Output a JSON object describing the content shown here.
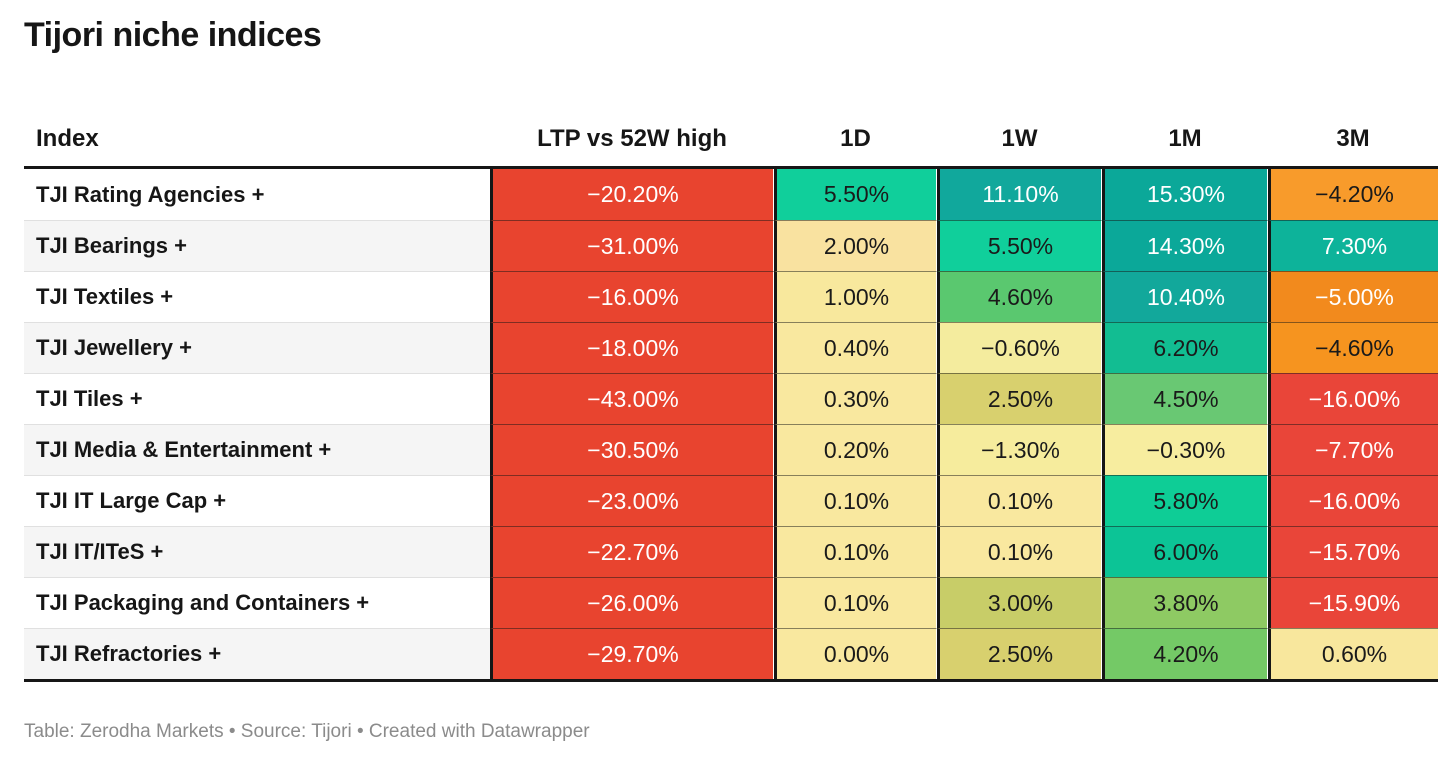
{
  "title": "Tijori niche indices",
  "footer": "Table: Zerodha Markets • Source: Tijori • Created with Datawrapper",
  "columns": [
    {
      "key": "index",
      "label": "Index"
    },
    {
      "key": "ltp",
      "label": "LTP vs 52W high"
    },
    {
      "key": "d1",
      "label": "1D"
    },
    {
      "key": "w1",
      "label": "1W"
    },
    {
      "key": "m1",
      "label": "1M"
    },
    {
      "key": "m3",
      "label": "3M"
    }
  ],
  "colors": {
    "red_ltp": "#e8442f",
    "red": "#e94539",
    "orange": "#f6941f",
    "pale_yellow": "#f9e89f",
    "olive": "#d8d06e",
    "green": "#69c873",
    "emerald": "#10cf9b",
    "teal": "#0ba899",
    "text_dark": "#1a1a1a",
    "text_light": "#ffffff",
    "border_dark": "#161616"
  },
  "rows": [
    {
      "index": "TJI Rating Agencies +",
      "cells": [
        {
          "text": "−20.20%",
          "bg": "#e8442f",
          "fg": "#ffffff"
        },
        {
          "text": "5.50%",
          "bg": "#10cf9b",
          "fg": "#1a1a1a"
        },
        {
          "text": "11.10%",
          "bg": "#11a89c",
          "fg": "#ffffff"
        },
        {
          "text": "15.30%",
          "bg": "#0ba899",
          "fg": "#ffffff"
        },
        {
          "text": "−4.20%",
          "bg": "#f89b2b",
          "fg": "#1a1a1a"
        }
      ]
    },
    {
      "index": "TJI Bearings +",
      "cells": [
        {
          "text": "−31.00%",
          "bg": "#e8442f",
          "fg": "#ffffff"
        },
        {
          "text": "2.00%",
          "bg": "#f9e2a0",
          "fg": "#1a1a1a"
        },
        {
          "text": "5.50%",
          "bg": "#10cf9b",
          "fg": "#1a1a1a"
        },
        {
          "text": "14.30%",
          "bg": "#0ba899",
          "fg": "#ffffff"
        },
        {
          "text": "7.30%",
          "bg": "#0db39a",
          "fg": "#ffffff"
        }
      ]
    },
    {
      "index": "TJI Textiles +",
      "cells": [
        {
          "text": "−16.00%",
          "bg": "#e8442f",
          "fg": "#ffffff"
        },
        {
          "text": "1.00%",
          "bg": "#f8e89d",
          "fg": "#1a1a1a"
        },
        {
          "text": "4.60%",
          "bg": "#5ac86f",
          "fg": "#1a1a1a"
        },
        {
          "text": "10.40%",
          "bg": "#12a89b",
          "fg": "#ffffff"
        },
        {
          "text": "−5.00%",
          "bg": "#f28a1d",
          "fg": "#ffffff"
        }
      ]
    },
    {
      "index": "TJI Jewellery +",
      "cells": [
        {
          "text": "−18.00%",
          "bg": "#e8442f",
          "fg": "#ffffff"
        },
        {
          "text": "0.40%",
          "bg": "#f9e89f",
          "fg": "#1a1a1a"
        },
        {
          "text": "−0.60%",
          "bg": "#f4ec9e",
          "fg": "#1a1a1a"
        },
        {
          "text": "6.20%",
          "bg": "#12bd92",
          "fg": "#1a1a1a"
        },
        {
          "text": "−4.60%",
          "bg": "#f6941f",
          "fg": "#1a1a1a"
        }
      ]
    },
    {
      "index": "TJI Tiles +",
      "cells": [
        {
          "text": "−43.00%",
          "bg": "#e8442f",
          "fg": "#ffffff"
        },
        {
          "text": "0.30%",
          "bg": "#f9e89f",
          "fg": "#1a1a1a"
        },
        {
          "text": "2.50%",
          "bg": "#d8d06e",
          "fg": "#1a1a1a"
        },
        {
          "text": "4.50%",
          "bg": "#69c873",
          "fg": "#1a1a1a"
        },
        {
          "text": "−16.00%",
          "bg": "#e94539",
          "fg": "#ffffff"
        }
      ]
    },
    {
      "index": "TJI Media & Entertainment +",
      "cells": [
        {
          "text": "−30.50%",
          "bg": "#e8442f",
          "fg": "#ffffff"
        },
        {
          "text": "0.20%",
          "bg": "#f9e89f",
          "fg": "#1a1a1a"
        },
        {
          "text": "−1.30%",
          "bg": "#f6ec9d",
          "fg": "#1a1a1a"
        },
        {
          "text": "−0.30%",
          "bg": "#f7ed9f",
          "fg": "#1a1a1a"
        },
        {
          "text": "−7.70%",
          "bg": "#e94539",
          "fg": "#ffffff"
        }
      ]
    },
    {
      "index": "TJI IT Large Cap +",
      "cells": [
        {
          "text": "−23.00%",
          "bg": "#e8442f",
          "fg": "#ffffff"
        },
        {
          "text": "0.10%",
          "bg": "#f9e89f",
          "fg": "#1a1a1a"
        },
        {
          "text": "0.10%",
          "bg": "#f9e89f",
          "fg": "#1a1a1a"
        },
        {
          "text": "5.80%",
          "bg": "#0ecd96",
          "fg": "#1a1a1a"
        },
        {
          "text": "−16.00%",
          "bg": "#e94539",
          "fg": "#ffffff"
        }
      ]
    },
    {
      "index": "TJI IT/ITeS +",
      "cells": [
        {
          "text": "−22.70%",
          "bg": "#e8442f",
          "fg": "#ffffff"
        },
        {
          "text": "0.10%",
          "bg": "#f9e89f",
          "fg": "#1a1a1a"
        },
        {
          "text": "0.10%",
          "bg": "#f9e89f",
          "fg": "#1a1a1a"
        },
        {
          "text": "6.00%",
          "bg": "#0cc496",
          "fg": "#1a1a1a"
        },
        {
          "text": "−15.70%",
          "bg": "#e94539",
          "fg": "#ffffff"
        }
      ]
    },
    {
      "index": "TJI Packaging and Containers +",
      "cells": [
        {
          "text": "−26.00%",
          "bg": "#e8442f",
          "fg": "#ffffff"
        },
        {
          "text": "0.10%",
          "bg": "#f9e89f",
          "fg": "#1a1a1a"
        },
        {
          "text": "3.00%",
          "bg": "#c8cd68",
          "fg": "#1a1a1a"
        },
        {
          "text": "3.80%",
          "bg": "#8eca63",
          "fg": "#1a1a1a"
        },
        {
          "text": "−15.90%",
          "bg": "#e94539",
          "fg": "#ffffff"
        }
      ]
    },
    {
      "index": "TJI Refractories +",
      "cells": [
        {
          "text": "−29.70%",
          "bg": "#e8442f",
          "fg": "#ffffff"
        },
        {
          "text": "0.00%",
          "bg": "#f9e89f",
          "fg": "#1a1a1a"
        },
        {
          "text": "2.50%",
          "bg": "#d8d06e",
          "fg": "#1a1a1a"
        },
        {
          "text": "4.20%",
          "bg": "#74c966",
          "fg": "#1a1a1a"
        },
        {
          "text": "0.60%",
          "bg": "#f8e79d",
          "fg": "#1a1a1a"
        }
      ]
    }
  ],
  "chart_data": {
    "type": "table",
    "title": "Tijori niche indices",
    "columns": [
      "Index",
      "LTP vs 52W high",
      "1D",
      "1W",
      "1M",
      "3M"
    ],
    "rows": [
      [
        "TJI Rating Agencies +",
        -20.2,
        5.5,
        11.1,
        15.3,
        -4.2
      ],
      [
        "TJI Bearings +",
        -31.0,
        2.0,
        5.5,
        14.3,
        7.3
      ],
      [
        "TJI Textiles +",
        -16.0,
        1.0,
        4.6,
        10.4,
        -5.0
      ],
      [
        "TJI Jewellery +",
        -18.0,
        0.4,
        -0.6,
        6.2,
        -4.6
      ],
      [
        "TJI Tiles +",
        -43.0,
        0.3,
        2.5,
        4.5,
        -16.0
      ],
      [
        "TJI Media & Entertainment +",
        -30.5,
        0.2,
        -1.3,
        -0.3,
        -7.7
      ],
      [
        "TJI IT Large Cap +",
        -23.0,
        0.1,
        0.1,
        5.8,
        -16.0
      ],
      [
        "TJI IT/ITeS +",
        -22.7,
        0.1,
        0.1,
        6.0,
        -15.7
      ],
      [
        "TJI Packaging and Containers +",
        -26.0,
        0.1,
        3.0,
        3.8,
        -15.9
      ],
      [
        "TJI Refractories +",
        -29.7,
        0.0,
        2.5,
        4.2,
        0.6
      ]
    ],
    "units": "percent",
    "color_scale": "diverging red–yellow–green heatmap on value cells",
    "footer": "Table: Zerodha Markets • Source: Tijori • Created with Datawrapper"
  }
}
